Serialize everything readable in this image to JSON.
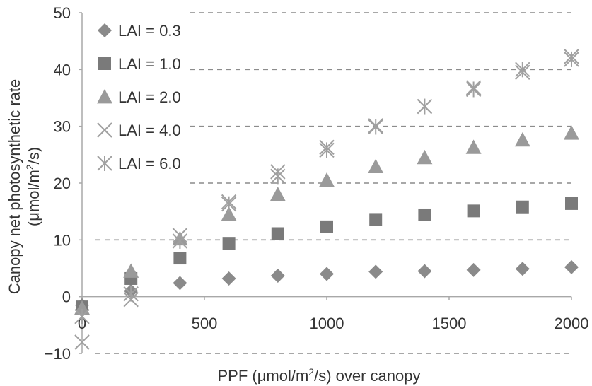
{
  "chart_data": {
    "type": "scatter",
    "xlabel_parts": [
      "PPF (μmol/m",
      "2",
      "/s) over canopy"
    ],
    "ylabel_line1": "Canopy net photosynthetic rate",
    "ylabel_line2_parts": [
      "(μmol/m",
      "2",
      "/s)"
    ],
    "xlim": [
      0,
      2000
    ],
    "ylim": [
      -10,
      50
    ],
    "x_ticks": [
      0,
      500,
      1000,
      1500,
      2000
    ],
    "y_ticks": [
      -10,
      0,
      10,
      20,
      30,
      40,
      50
    ],
    "grid": "horizontal-dashed",
    "legend_position": "top-left",
    "series": [
      {
        "name": "LAI = 0.3",
        "marker": "diamond",
        "color": "#8a8a8a",
        "points": [
          [
            0,
            -1.5
          ],
          [
            200,
            1.0
          ],
          [
            400,
            2.4
          ],
          [
            600,
            3.2
          ],
          [
            800,
            3.7
          ],
          [
            1000,
            4.0
          ],
          [
            1200,
            4.4
          ],
          [
            1400,
            4.5
          ],
          [
            1600,
            4.7
          ],
          [
            1800,
            4.9
          ],
          [
            2000,
            5.2
          ]
        ]
      },
      {
        "name": "LAI = 1.0",
        "marker": "square",
        "color": "#7a7a7a",
        "points": [
          [
            0,
            -1.8
          ],
          [
            200,
            3.2
          ],
          [
            400,
            6.8
          ],
          [
            600,
            9.4
          ],
          [
            800,
            11.1
          ],
          [
            1000,
            12.3
          ],
          [
            1200,
            13.6
          ],
          [
            1400,
            14.4
          ],
          [
            1600,
            15.1
          ],
          [
            1800,
            15.8
          ],
          [
            2000,
            16.4
          ]
        ]
      },
      {
        "name": "LAI = 2.0",
        "marker": "triangle",
        "color": "#9a9a9a",
        "points": [
          [
            0,
            -2.0
          ],
          [
            200,
            4.5
          ],
          [
            400,
            10.2
          ],
          [
            600,
            14.5
          ],
          [
            800,
            18.0
          ],
          [
            1000,
            20.5
          ],
          [
            1200,
            22.9
          ],
          [
            1400,
            24.5
          ],
          [
            1600,
            26.3
          ],
          [
            1800,
            27.6
          ],
          [
            2000,
            28.8
          ]
        ]
      },
      {
        "name": "LAI = 4.0",
        "marker": "x",
        "color": "#a0a0a0",
        "points": [
          [
            0,
            -8.0
          ],
          [
            200,
            -0.5
          ],
          [
            400,
            10.8
          ],
          [
            600,
            16.7
          ],
          [
            800,
            22.0
          ],
          [
            1000,
            26.3
          ],
          [
            1200,
            30.1
          ],
          [
            1400,
            33.5
          ],
          [
            1600,
            36.8
          ],
          [
            1800,
            39.5
          ],
          [
            2000,
            42.3
          ]
        ]
      },
      {
        "name": "LAI = 6.0",
        "marker": "asterisk",
        "color": "#a0a0a0",
        "points": [
          [
            0,
            -3.5
          ],
          [
            200,
            0.5
          ],
          [
            400,
            9.8
          ],
          [
            600,
            16.3
          ],
          [
            800,
            21.2
          ],
          [
            1000,
            25.8
          ],
          [
            1200,
            29.9
          ],
          [
            1400,
            33.5
          ],
          [
            1600,
            36.5
          ],
          [
            1800,
            40.0
          ],
          [
            2000,
            41.8
          ]
        ]
      }
    ]
  }
}
